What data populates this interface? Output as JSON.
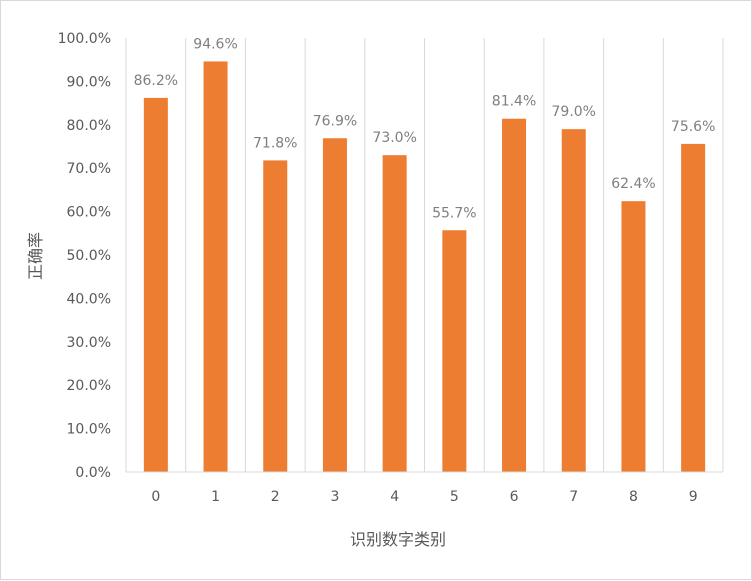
{
  "chart_data": {
    "type": "bar",
    "title": "",
    "xlabel": "识别数字类别",
    "ylabel": "正确率",
    "categories": [
      "0",
      "1",
      "2",
      "3",
      "4",
      "5",
      "6",
      "7",
      "8",
      "9"
    ],
    "values": [
      86.2,
      94.6,
      71.8,
      76.9,
      73.0,
      55.7,
      81.4,
      79.0,
      62.4,
      75.6
    ],
    "data_labels": [
      "86.2%",
      "94.6%",
      "71.8%",
      "76.9%",
      "73.0%",
      "55.7%",
      "81.4%",
      "79.0%",
      "62.4%",
      "75.6%"
    ],
    "y_ticks": [
      "0.0%",
      "10.0%",
      "20.0%",
      "30.0%",
      "40.0%",
      "50.0%",
      "60.0%",
      "70.0%",
      "80.0%",
      "90.0%",
      "100.0%"
    ],
    "ylim": [
      0,
      100
    ],
    "grid": "vertical category separators",
    "legend": "none",
    "bar_color": "#ED7D31"
  }
}
